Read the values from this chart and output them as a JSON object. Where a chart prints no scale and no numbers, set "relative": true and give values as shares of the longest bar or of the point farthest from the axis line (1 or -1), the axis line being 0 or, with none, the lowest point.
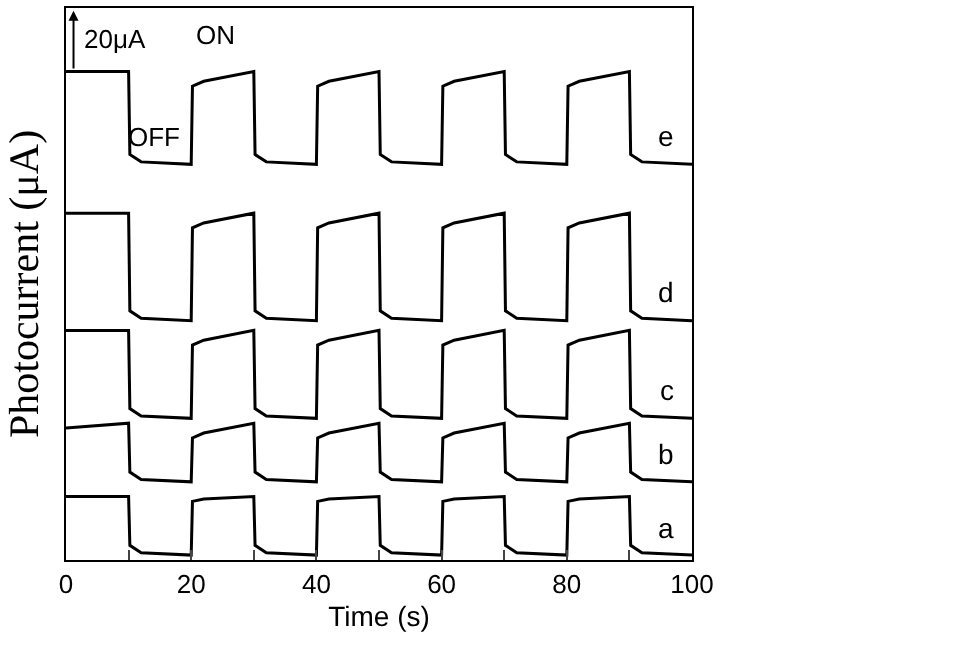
{
  "chart_data": {
    "type": "line",
    "relative": true,
    "xlabel": "Time (s)",
    "ylabel": "Photocurrent (μA)",
    "xlim": [
      0,
      100
    ],
    "xticks": [
      0,
      {
        "value": 10,
        "label": null
      },
      20,
      {
        "value": 30,
        "label": null
      },
      40,
      {
        "value": 50,
        "label": null
      },
      60,
      {
        "value": 70,
        "label": null
      },
      80,
      {
        "value": 90,
        "label": null
      },
      100
    ],
    "grid": false,
    "legend": false,
    "marker": "none",
    "line_style": "solid",
    "annotations": [
      "20μA",
      "ON",
      "OFF"
    ],
    "x": [
      0,
      10,
      10.2,
      12,
      20,
      20.2,
      22,
      30,
      30.2,
      32,
      40,
      40.2,
      42,
      50,
      50.2,
      52,
      60,
      60.2,
      62,
      70,
      70.2,
      72,
      80,
      80.2,
      82,
      90,
      90.2,
      92,
      100
    ],
    "series": [
      {
        "name": "a",
        "color": "#000000",
        "values": [
          0.13,
          0.13,
          0.03,
          0.015,
          0.01,
          0.12,
          0.125,
          0.13,
          0.03,
          0.015,
          0.01,
          0.12,
          0.125,
          0.13,
          0.03,
          0.015,
          0.01,
          0.12,
          0.125,
          0.13,
          0.03,
          0.015,
          0.01,
          0.12,
          0.125,
          0.13,
          0.03,
          0.015,
          0.01
        ]
      },
      {
        "name": "b",
        "color": "#000000",
        "values": [
          0.27,
          0.28,
          0.18,
          0.165,
          0.16,
          0.25,
          0.26,
          0.28,
          0.18,
          0.165,
          0.16,
          0.25,
          0.26,
          0.28,
          0.18,
          0.165,
          0.16,
          0.25,
          0.26,
          0.28,
          0.18,
          0.165,
          0.16,
          0.25,
          0.26,
          0.28,
          0.18,
          0.165,
          0.16
        ]
      },
      {
        "name": "c",
        "color": "#000000",
        "values": [
          0.47,
          0.47,
          0.31,
          0.295,
          0.29,
          0.44,
          0.45,
          0.47,
          0.31,
          0.295,
          0.29,
          0.44,
          0.45,
          0.47,
          0.31,
          0.295,
          0.29,
          0.44,
          0.45,
          0.47,
          0.31,
          0.295,
          0.29,
          0.44,
          0.45,
          0.47,
          0.31,
          0.295,
          0.29
        ]
      },
      {
        "name": "d",
        "color": "#000000",
        "values": [
          0.71,
          0.71,
          0.51,
          0.495,
          0.49,
          0.68,
          0.69,
          0.71,
          0.51,
          0.495,
          0.49,
          0.68,
          0.69,
          0.71,
          0.51,
          0.495,
          0.49,
          0.68,
          0.69,
          0.71,
          0.51,
          0.495,
          0.49,
          0.68,
          0.69,
          0.71,
          0.51,
          0.495,
          0.49
        ]
      },
      {
        "name": "e",
        "color": "#000000",
        "values": [
          1.0,
          1.0,
          0.83,
          0.815,
          0.81,
          0.97,
          0.98,
          1.0,
          0.83,
          0.815,
          0.81,
          0.97,
          0.98,
          1.0,
          0.83,
          0.815,
          0.81,
          0.97,
          0.98,
          1.0,
          0.83,
          0.815,
          0.81,
          0.97,
          0.98,
          1.0,
          0.83,
          0.815,
          0.81
        ]
      }
    ]
  }
}
